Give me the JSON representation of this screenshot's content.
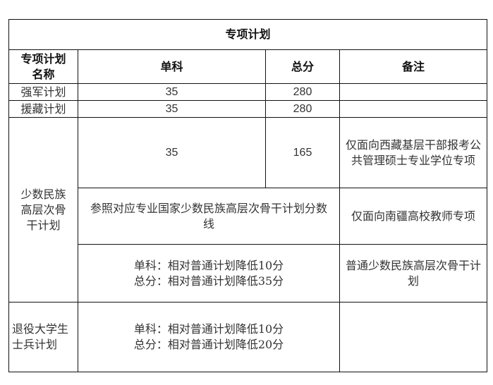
{
  "title": "专项计划",
  "headers": [
    "专项计划名称",
    "单科",
    "总分",
    "备注"
  ],
  "rows": {
    "qiangjun": {
      "name": "强军计划",
      "single": "35",
      "total": "280",
      "note": ""
    },
    "yuanzang": {
      "name": "援藏计划",
      "single": "35",
      "total": "280",
      "note": ""
    },
    "minority": {
      "name": "少数民族高层次骨干计划",
      "sub1": {
        "single": "35",
        "total": "165",
        "note": "仅面向西藏基层干部报考公共管理硕士专业学位专项"
      },
      "sub2": {
        "score": "参照对应专业国家少数民族高层次骨干计划分数线",
        "note": "仅面向南疆高校教师专项"
      },
      "sub3": {
        "line1": "单科：相对普通计划降低10分",
        "line2": "总分：相对普通计划降低35分",
        "note": "普通少数民族高层次骨干计划"
      }
    },
    "veteran": {
      "name": "退役大学生士兵计划",
      "line1": "单科：相对普通计划降低10分",
      "line2": "总分：相对普通计划降低20分",
      "note": ""
    }
  }
}
